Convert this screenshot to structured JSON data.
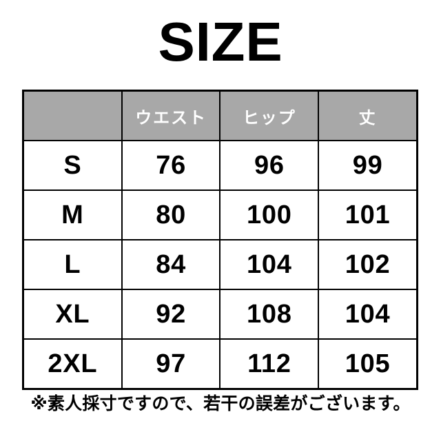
{
  "title": "SIZE",
  "footnote": "※素人採寸ですので、若干の誤差がございます。",
  "colors": {
    "background": "#ffffff",
    "header_bg": "#a8a8a8",
    "header_text": "#ffffff",
    "border": "#000000",
    "text": "#000000"
  },
  "chart_data": {
    "type": "table",
    "title": "SIZE",
    "columns": [
      "",
      "ウエスト",
      "ヒップ",
      "丈"
    ],
    "rows": [
      [
        "S",
        76,
        96,
        99
      ],
      [
        "M",
        80,
        100,
        101
      ],
      [
        "L",
        84,
        104,
        102
      ],
      [
        "XL",
        92,
        108,
        104
      ],
      [
        "2XL",
        97,
        112,
        105
      ]
    ],
    "note": "※素人採寸ですので、若干の誤差がございます。",
    "layout": "header row shaded gray with white labels; first column lists sizes; grid with black borders"
  }
}
